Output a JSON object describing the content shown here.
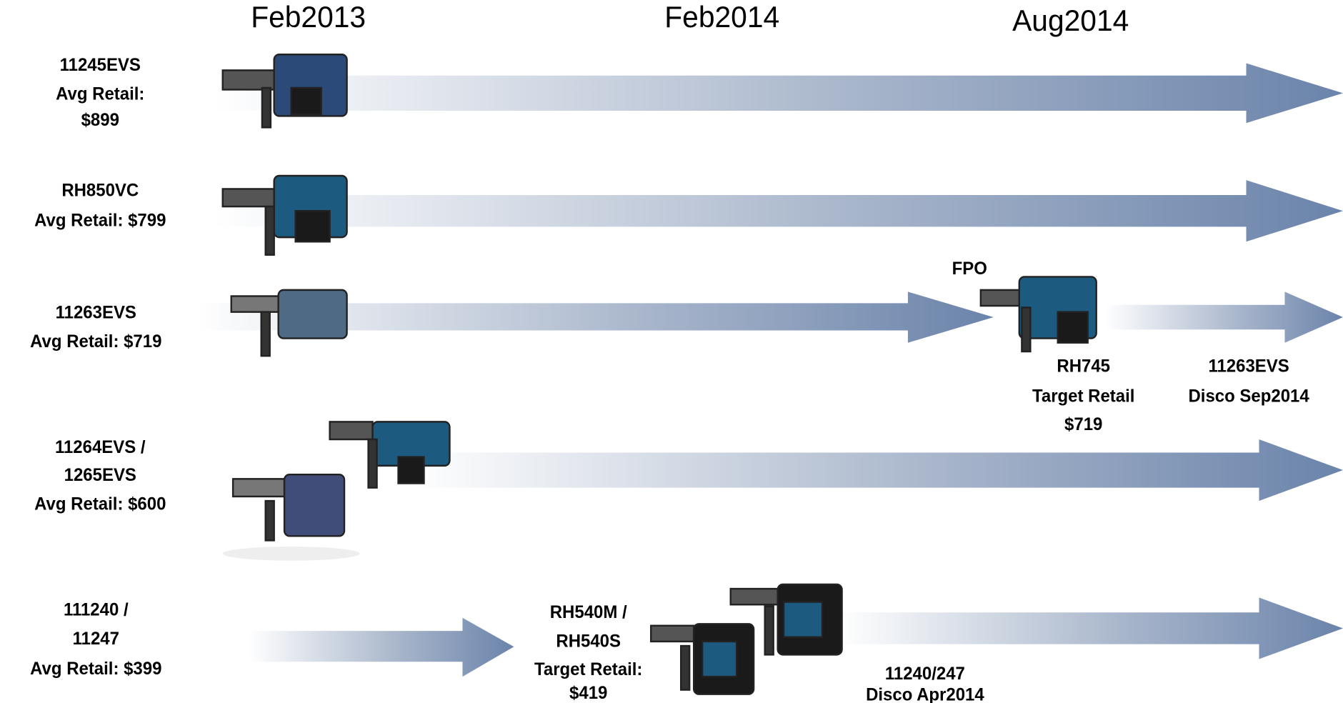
{
  "header": {
    "dates": [
      "Feb2013",
      "Feb2014",
      "Aug2014"
    ]
  },
  "rows": [
    {
      "label": [
        "11245EVS",
        "Avg Retail:",
        "$899"
      ]
    },
    {
      "label": [
        "RH850VC",
        "Avg Retail: $799"
      ]
    },
    {
      "label": [
        "11263EVS",
        "Avg Retail: $719"
      ]
    },
    {
      "label": [
        "11264EVS /",
        "1265EVS",
        "Avg Retail: $600"
      ]
    },
    {
      "label": [
        "111240 /",
        "11247",
        "Avg Retail:  $399"
      ]
    }
  ],
  "annotations": {
    "fpo": "FPO",
    "rh745": [
      "RH745",
      "Target Retail",
      "$719"
    ],
    "disco_11263": [
      "11263EVS",
      "Disco Sep2014"
    ],
    "rh540": [
      "RH540M /",
      "RH540S",
      "Target Retail:",
      "$419"
    ],
    "disco_11240": [
      "11240/247",
      "Disco Apr2014"
    ]
  }
}
